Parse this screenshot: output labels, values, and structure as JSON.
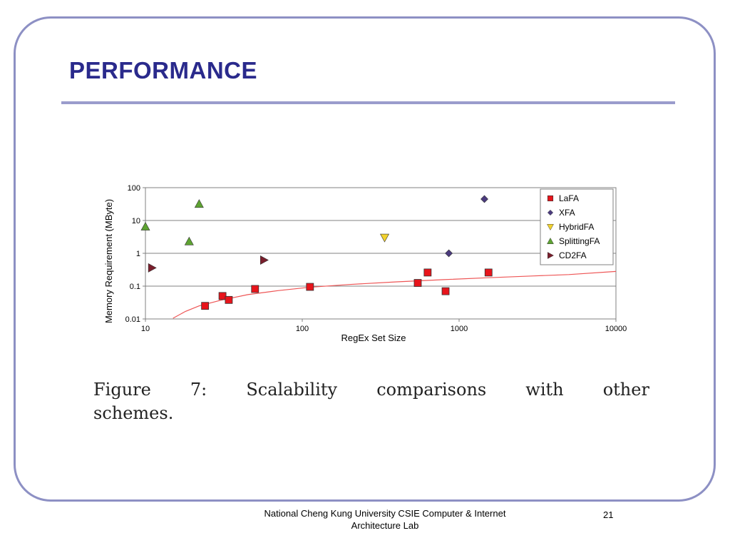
{
  "slide": {
    "title": "PERFORMANCE",
    "caption_words": [
      "Figure",
      "7:",
      "Scalability",
      "comparisons",
      "with",
      "other"
    ],
    "caption_line2": "schemes.",
    "footer_line1": "National Cheng Kung University CSIE Computer & Internet",
    "footer_line2": "Architecture Lab",
    "page_number": "21"
  },
  "chart_data": {
    "type": "scatter",
    "xlabel": "RegEx Set Size",
    "ylabel": "Memory Requirement (MByte)",
    "xscale": "log",
    "yscale": "log",
    "xlim": [
      10,
      10000
    ],
    "ylim": [
      0.01,
      100
    ],
    "xticks": [
      "10",
      "100",
      "1000",
      "10000"
    ],
    "yticks": [
      "0.01",
      "0.1",
      "1",
      "10",
      "100"
    ],
    "grid": "horizontal",
    "legend_position": "top-right",
    "series": [
      {
        "name": "LaFA",
        "marker": "square",
        "color": "#e8141b",
        "points": [
          [
            24,
            0.025
          ],
          [
            31,
            0.05
          ],
          [
            34,
            0.038
          ],
          [
            50,
            0.082
          ],
          [
            112,
            0.095
          ],
          [
            545,
            0.125
          ],
          [
            630,
            0.26
          ],
          [
            820,
            0.07
          ],
          [
            1540,
            0.26
          ]
        ]
      },
      {
        "name": "XFA",
        "marker": "diamond",
        "color": "#4b3b7e",
        "points": [
          [
            860,
            1.0
          ],
          [
            1450,
            45
          ]
        ]
      },
      {
        "name": "HybridFA",
        "marker": "triangle-down",
        "color": "#f2d22e",
        "points": [
          [
            335,
            3.0
          ]
        ]
      },
      {
        "name": "SplittingFA",
        "marker": "triangle-up",
        "color": "#5ea332",
        "points": [
          [
            10,
            6.5
          ],
          [
            19,
            2.3
          ],
          [
            22,
            32
          ]
        ]
      },
      {
        "name": "CD2FA",
        "marker": "triangle-right",
        "color": "#7a1e2c",
        "points": [
          [
            11,
            0.36
          ],
          [
            57,
            0.62
          ]
        ]
      }
    ],
    "trendline": {
      "color": "#ee5555",
      "points": [
        [
          15,
          0.0105
        ],
        [
          18,
          0.017
        ],
        [
          22,
          0.025
        ],
        [
          30,
          0.037
        ],
        [
          45,
          0.055
        ],
        [
          70,
          0.073
        ],
        [
          110,
          0.092
        ],
        [
          200,
          0.112
        ],
        [
          400,
          0.135
        ],
        [
          800,
          0.158
        ],
        [
          1500,
          0.18
        ],
        [
          3000,
          0.205
        ],
        [
          5000,
          0.225
        ],
        [
          10000,
          0.28
        ]
      ]
    }
  }
}
